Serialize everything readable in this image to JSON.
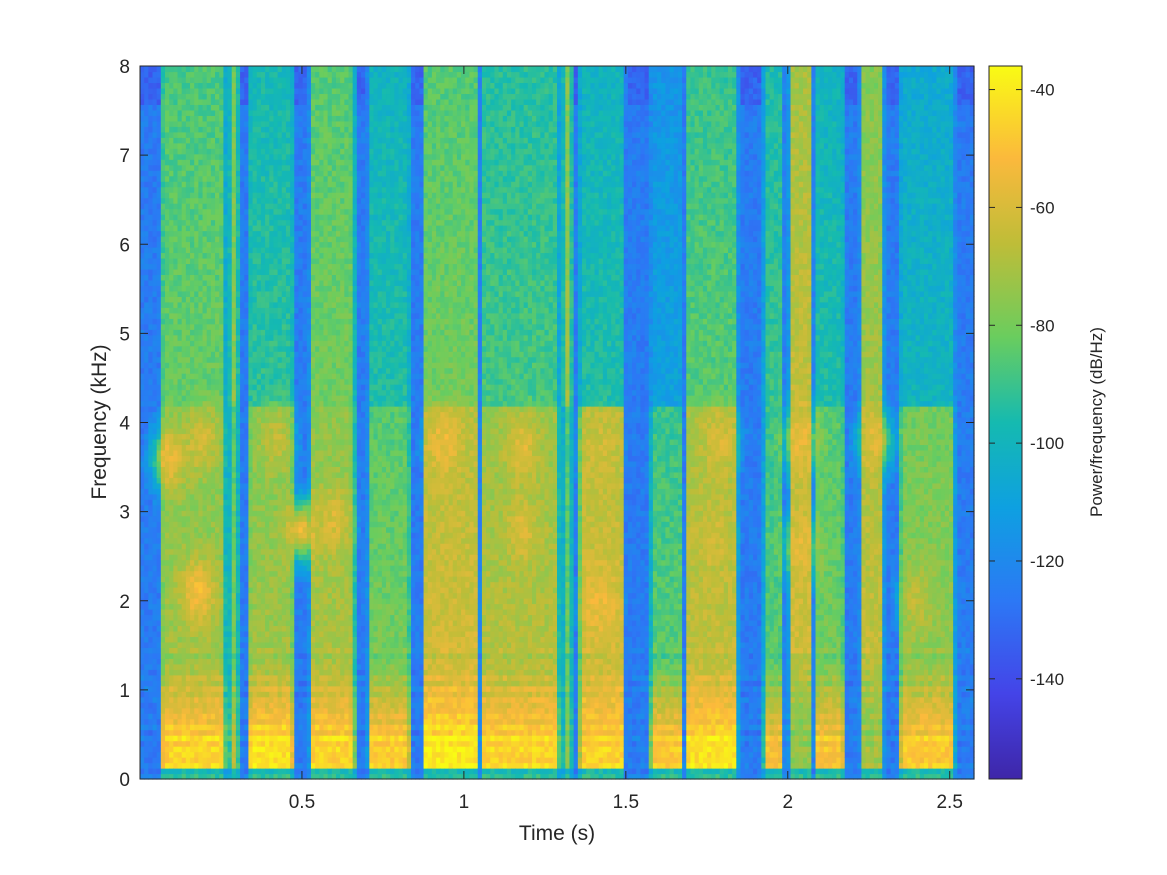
{
  "chart_data": {
    "type": "heatmap",
    "title": "",
    "xlabel": "Time (s)",
    "ylabel": "Frequency (kHz)",
    "xlim": [
      0,
      2.575
    ],
    "ylim": [
      0,
      8
    ],
    "x_ticks": [
      0.5,
      1,
      1.5,
      2,
      2.5
    ],
    "x_tick_labels": [
      "0.5",
      "1",
      "1.5",
      "2",
      "2.5"
    ],
    "y_ticks": [
      0,
      1,
      2,
      3,
      4,
      5,
      6,
      7,
      8
    ],
    "y_tick_labels": [
      "0",
      "1",
      "2",
      "3",
      "4",
      "5",
      "6",
      "7",
      "8"
    ],
    "colorbar": {
      "label": "Power/frequency (dB/Hz)",
      "range": [
        -157,
        -36
      ],
      "ticks": [
        -40,
        -60,
        -80,
        -100,
        -120,
        -140
      ],
      "tick_labels": [
        "-40",
        "-60",
        "-80",
        "-100",
        "-120",
        "-140"
      ],
      "colormap": "parula"
    },
    "grid": false,
    "background_level_db": -125,
    "segments": [
      {
        "t0": 0.06,
        "t1": 0.27,
        "low_db": -45,
        "high_db": -72,
        "hf_db": -82
      },
      {
        "t0": 0.27,
        "t1": 0.31,
        "low_db": -65,
        "high_db": -80,
        "hf_db": -75
      },
      {
        "t0": 0.33,
        "t1": 0.48,
        "low_db": -42,
        "high_db": -72,
        "hf_db": -92
      },
      {
        "t0": 0.52,
        "t1": 0.67,
        "low_db": -45,
        "high_db": -70,
        "hf_db": -80
      },
      {
        "t0": 0.7,
        "t1": 0.84,
        "low_db": -47,
        "high_db": -80,
        "hf_db": -95
      },
      {
        "t0": 0.87,
        "t1": 1.05,
        "low_db": -40,
        "high_db": -62,
        "hf_db": -80
      },
      {
        "t0": 1.05,
        "t1": 1.3,
        "low_db": -45,
        "high_db": -68,
        "hf_db": -88
      },
      {
        "t0": 1.3,
        "t1": 1.34,
        "low_db": -75,
        "high_db": -82,
        "hf_db": -72
      },
      {
        "t0": 1.35,
        "t1": 1.5,
        "low_db": -45,
        "high_db": -62,
        "hf_db": -95
      },
      {
        "t0": 1.57,
        "t1": 1.68,
        "low_db": -48,
        "high_db": -85,
        "hf_db": -110
      },
      {
        "t0": 1.68,
        "t1": 1.85,
        "low_db": -42,
        "high_db": -65,
        "hf_db": -85
      },
      {
        "t0": 1.92,
        "t1": 1.99,
        "low_db": -52,
        "high_db": -85,
        "hf_db": -90
      },
      {
        "t0": 2.0,
        "t1": 2.08,
        "low_db": -75,
        "high_db": -62,
        "hf_db": -65
      },
      {
        "t0": 2.08,
        "t1": 2.18,
        "low_db": -50,
        "high_db": -80,
        "hf_db": -95
      },
      {
        "t0": 2.22,
        "t1": 2.3,
        "low_db": -72,
        "high_db": -65,
        "hf_db": -72
      },
      {
        "t0": 2.34,
        "t1": 2.52,
        "low_db": -48,
        "high_db": -75,
        "hf_db": -100
      }
    ],
    "formant_peaks": [
      {
        "t": 0.09,
        "f_khz": 3.6,
        "db": -55
      },
      {
        "t": 0.18,
        "f_khz": 2.1,
        "db": -52
      },
      {
        "t": 0.19,
        "f_khz": 3.8,
        "db": -60
      },
      {
        "t": 0.42,
        "f_khz": 3.8,
        "db": -65
      },
      {
        "t": 0.5,
        "f_khz": 2.8,
        "db": -55
      },
      {
        "t": 0.6,
        "f_khz": 2.9,
        "db": -60
      },
      {
        "t": 0.94,
        "f_khz": 3.8,
        "db": -55
      },
      {
        "t": 1.18,
        "f_khz": 3.7,
        "db": -58
      },
      {
        "t": 1.18,
        "f_khz": 2.8,
        "db": -60
      },
      {
        "t": 1.42,
        "f_khz": 2.0,
        "db": -55
      },
      {
        "t": 1.42,
        "f_khz": 3.7,
        "db": -62
      },
      {
        "t": 1.79,
        "f_khz": 3.8,
        "db": -60
      },
      {
        "t": 1.77,
        "f_khz": 2.7,
        "db": -62
      },
      {
        "t": 2.04,
        "f_khz": 3.8,
        "db": -55
      },
      {
        "t": 2.04,
        "f_khz": 2.6,
        "db": -58
      },
      {
        "t": 2.27,
        "f_khz": 3.8,
        "db": -58
      },
      {
        "t": 2.4,
        "f_khz": 2.0,
        "db": -65
      }
    ]
  }
}
